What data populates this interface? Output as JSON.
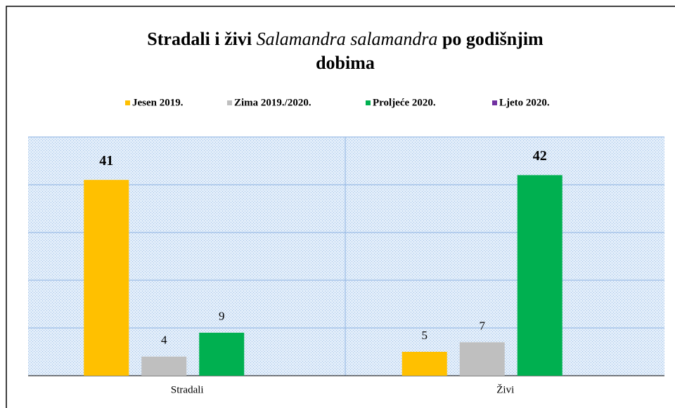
{
  "chart_data": {
    "type": "bar",
    "title": [
      "Stradali i živi",
      "Salamandra salamandra",
      "po godišnjim",
      "dobima"
    ],
    "categories": [
      "Stradali",
      "Živi"
    ],
    "series": [
      {
        "name": "Jesen 2019.",
        "color": "#ffc000",
        "values": [
          41,
          5
        ]
      },
      {
        "name": "Zima 2019./2020.",
        "color": "#bfbfbf",
        "values": [
          4,
          7
        ]
      },
      {
        "name": "Proljeće 2020.",
        "color": "#00b050",
        "values": [
          9,
          42
        ]
      },
      {
        "name": "Ljeto 2020.",
        "color": "#7030a0",
        "values": [
          null,
          null
        ]
      }
    ],
    "ylim": [
      0,
      50
    ],
    "yticks": [
      0,
      10,
      20,
      30,
      40,
      50
    ],
    "grid": true,
    "legend": "top"
  }
}
